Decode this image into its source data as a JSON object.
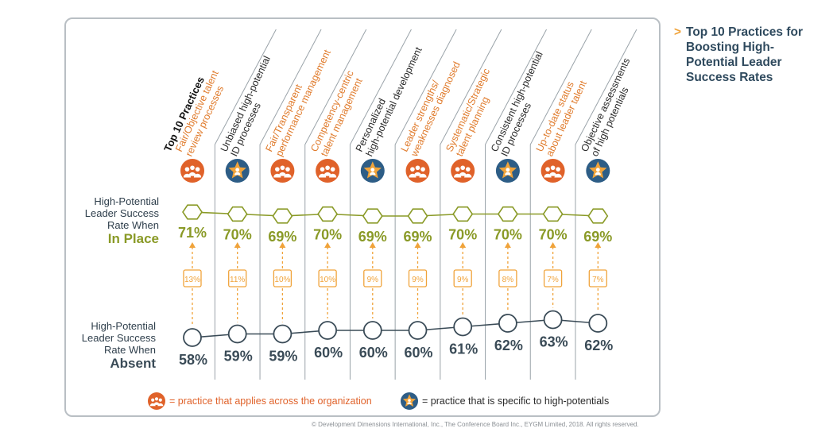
{
  "side_title": {
    "arrow": ">",
    "text": "Top 10 Practices for Boosting High-Potential Leader Success Rates"
  },
  "copyright": "© Development Dimensions International, Inc., The Conference Board Inc., EYGM Limited, 2018. All rights reserved.",
  "legend": {
    "org_text": "= practice that applies across the organization",
    "hipo_text": "= practice that is specific to high-potentials"
  },
  "row_labels": {
    "in_place_lines": "High-Potential Leader Success Rate When",
    "in_place_big": "In Place",
    "absent_lines": "High-Potential Leader Success Rate When",
    "absent_big": "Absent"
  },
  "colors": {
    "org": "#e0622a",
    "hipo": "#2d5d86",
    "in_place": "#8a9a27",
    "absent": "#3a4b57",
    "delta": "#f0a33a",
    "label_org": "#e07b2c",
    "label_hipo": "#2b2b2b"
  },
  "chart_data": {
    "type": "line",
    "title": "Top 10 Practices",
    "categories": [
      "Fair/Objective talent review processes",
      "Unbiased high-potential ID processes",
      "Fair/Transparent performance management",
      "Competency-centric talent management",
      "Personalized high-potential development",
      "Leader strengths/ weaknesses diagnosed",
      "Systematic/Strategic talent planning",
      "Consistent high-potential ID processes",
      "Up-to-date status about leader talent",
      "Objective assessments of high potentials"
    ],
    "category_types": [
      "org",
      "hipo",
      "org",
      "org",
      "hipo",
      "org",
      "org",
      "hipo",
      "org",
      "hipo"
    ],
    "series": [
      {
        "name": "High-Potential Leader Success Rate When In Place",
        "values": [
          71,
          70,
          69,
          70,
          69,
          69,
          70,
          70,
          70,
          69
        ]
      },
      {
        "name": "High-Potential Leader Success Rate When Absent",
        "values": [
          58,
          59,
          59,
          60,
          60,
          60,
          61,
          62,
          63,
          62
        ]
      }
    ],
    "differences": [
      13,
      11,
      10,
      10,
      9,
      9,
      9,
      8,
      7,
      7
    ],
    "unit": "%"
  }
}
